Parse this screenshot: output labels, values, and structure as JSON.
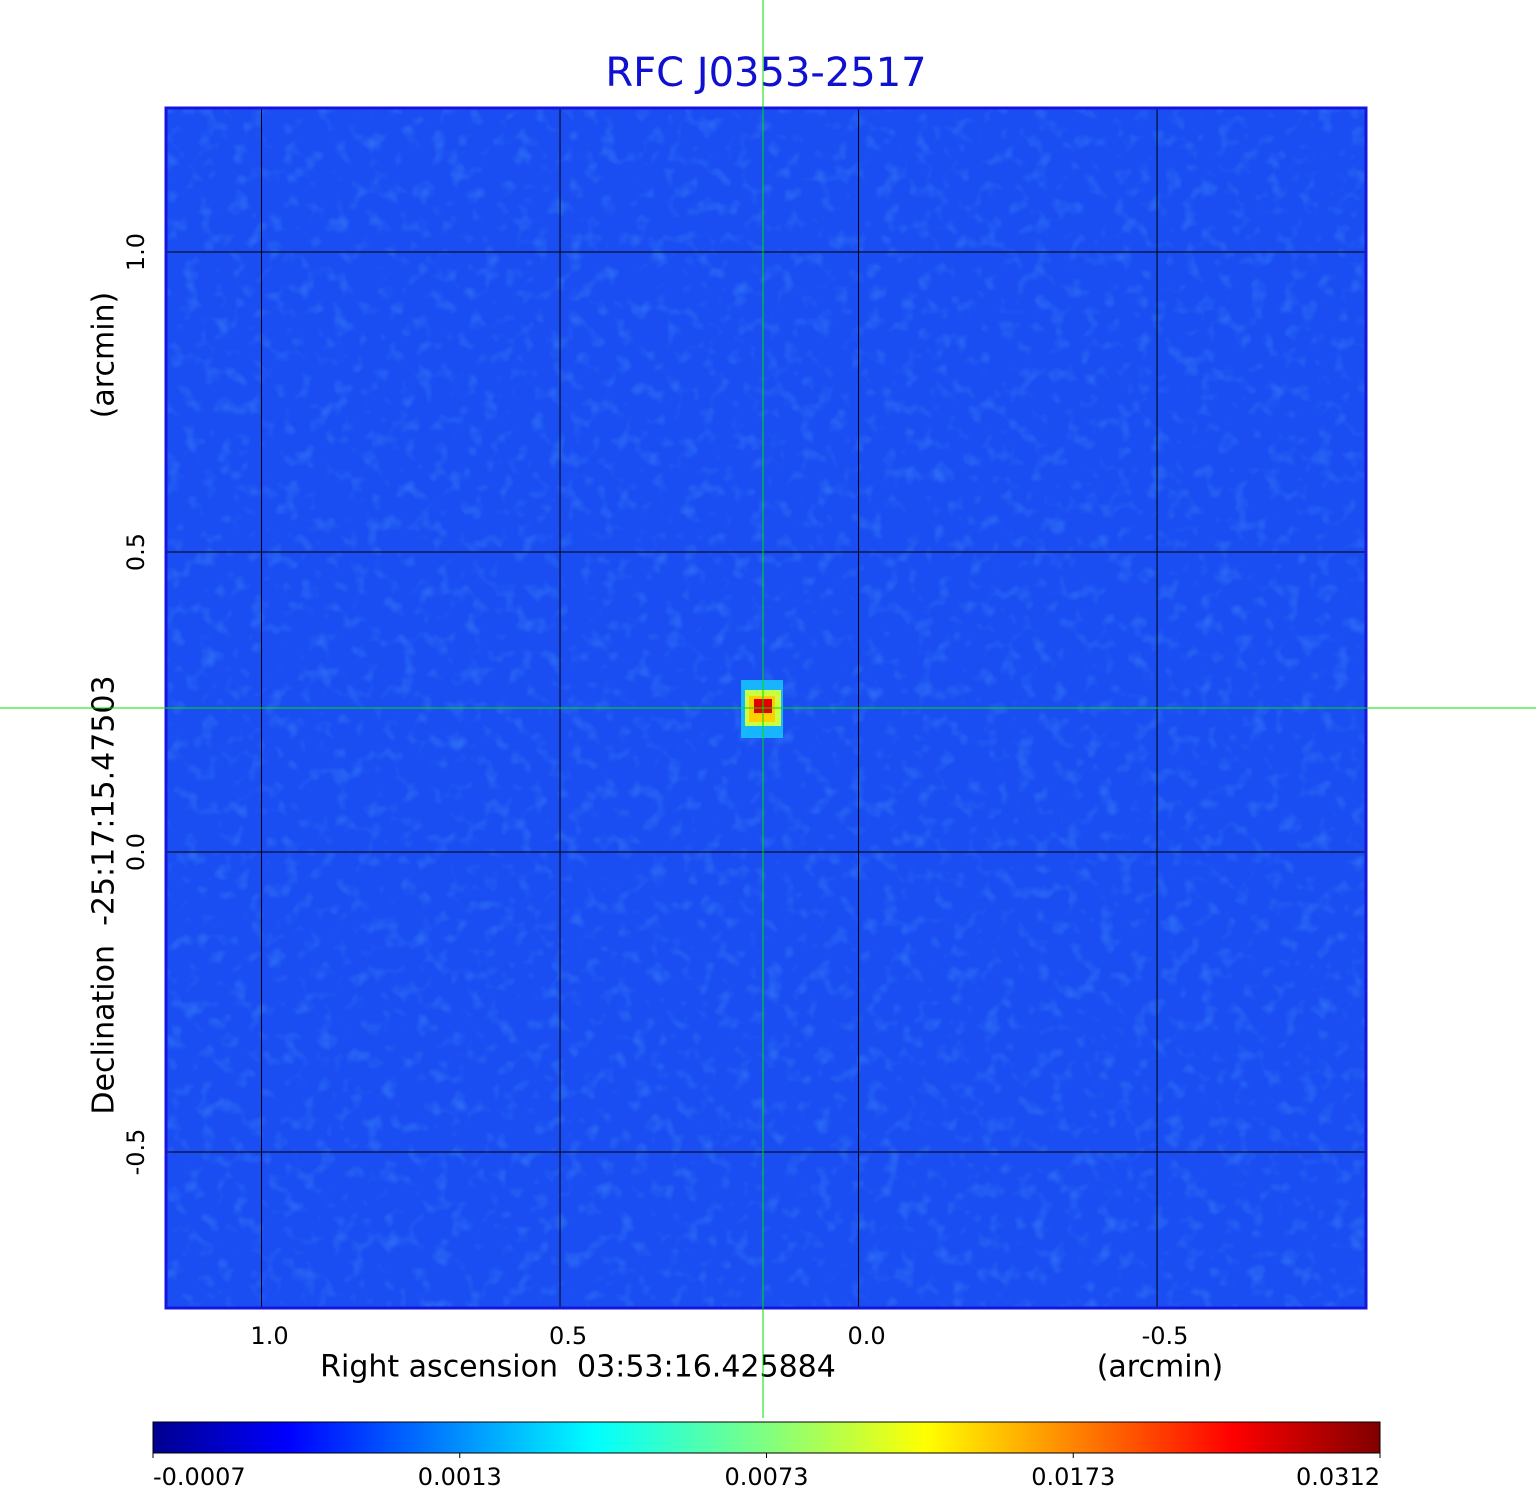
{
  "chart_data": {
    "type": "image",
    "title": "RFC J0353-2517",
    "xlabel": "Right ascension  03:53:16.425884",
    "xunit": "(arcmin)",
    "ylabel": "Declination  -25:17:15.47503",
    "yunit": "(arcmin)",
    "xlim": [
      1.16,
      -0.85
    ],
    "ylim": [
      -0.76,
      1.24
    ],
    "xticks": [
      {
        "value": 1,
        "label": "1.0"
      },
      0.5,
      {
        "value": 0,
        "label": "0.0"
      },
      -0.5
    ],
    "yticks": [
      -0.5,
      {
        "value": 0,
        "label": "0.0"
      },
      0.5,
      {
        "value": 1,
        "label": "1.0"
      }
    ],
    "grid": true,
    "crosshair": {
      "x": 0.16,
      "y": 0.24,
      "color": "#00e000"
    },
    "source": {
      "x": 0.16,
      "y": 0.24,
      "peak": 0.0312
    },
    "colorbar": {
      "colormap": "jet",
      "ticks": [
        -0.0007,
        0.0013,
        0.0073,
        0.0173,
        0.0312
      ]
    }
  }
}
